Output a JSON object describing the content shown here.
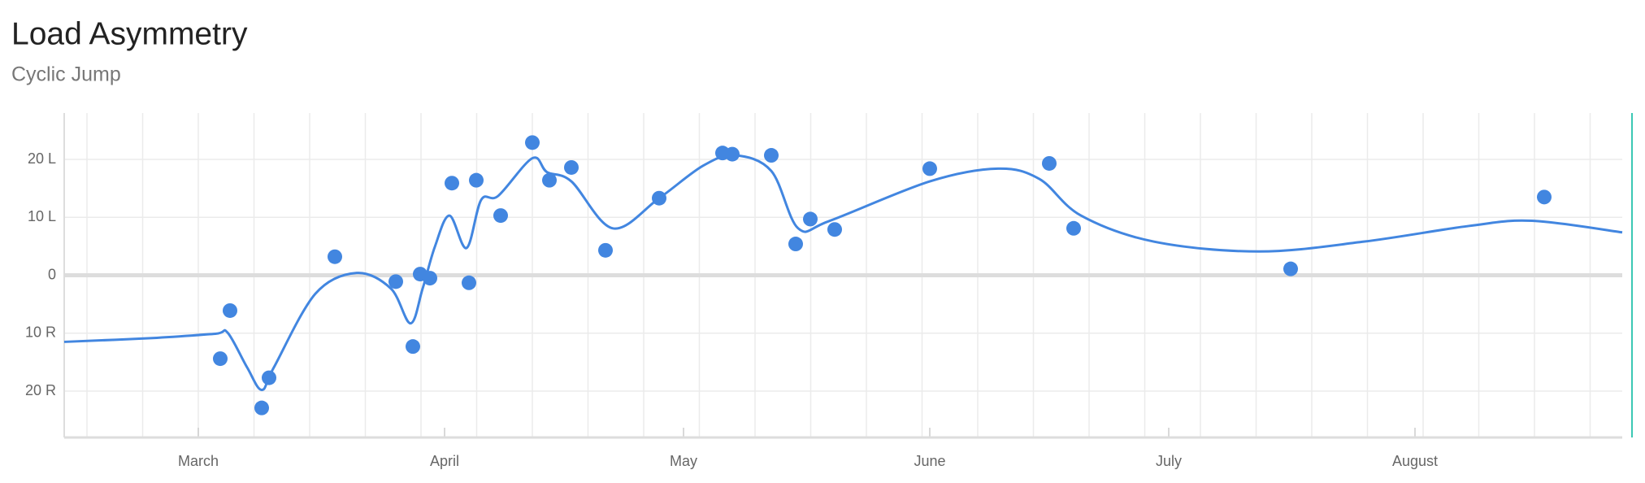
{
  "chart_data": {
    "type": "scatter",
    "title": "Load Asymmetry",
    "subtitle": "Cyclic Jump",
    "color": "#4286e0",
    "grid": true,
    "xlim": [
      2.45,
      8.84
    ],
    "xticks": [
      {
        "value": 3,
        "label": "March"
      },
      {
        "value": 4.01,
        "label": "April"
      },
      {
        "value": 4.99,
        "label": "May"
      },
      {
        "value": 6.0,
        "label": "June"
      },
      {
        "value": 6.98,
        "label": "July"
      },
      {
        "value": 7.99,
        "label": "August"
      }
    ],
    "ylim": [
      -28,
      28
    ],
    "yticks": [
      {
        "value": 20,
        "label": "20 L"
      },
      {
        "value": 10,
        "label": "10 L"
      },
      0,
      {
        "value": -10,
        "label": "10 R"
      },
      {
        "value": -20,
        "label": "20 R"
      }
    ],
    "points": {
      "x": [
        3.09,
        3.13,
        3.26,
        3.29,
        3.56,
        3.81,
        3.88,
        3.91,
        3.95,
        4.04,
        4.11,
        4.14,
        4.24,
        4.37,
        4.44,
        4.53,
        4.67,
        4.89,
        5.15,
        5.19,
        5.35,
        5.45,
        5.51,
        5.61,
        6.0,
        6.49,
        6.59,
        7.48,
        8.52
      ],
      "values": [
        -14.4,
        -6.1,
        -22.9,
        -17.7,
        3.2,
        -1.1,
        -12.3,
        0.2,
        -0.5,
        15.9,
        -1.3,
        16.4,
        10.3,
        22.9,
        16.4,
        18.6,
        4.3,
        13.3,
        21.1,
        20.9,
        20.7,
        5.4,
        9.7,
        7.9,
        18.4,
        19.3,
        8.1,
        1.1,
        13.5
      ]
    },
    "trend": {
      "x": [
        2.45,
        2.83,
        3.07,
        3.12,
        3.2,
        3.26,
        3.31,
        3.48,
        3.65,
        3.79,
        3.87,
        3.92,
        3.97,
        4.03,
        4.1,
        4.16,
        4.23,
        4.37,
        4.43,
        4.53,
        4.7,
        4.89,
        5.07,
        5.2,
        5.35,
        5.46,
        5.59,
        6.0,
        6.28,
        6.45,
        6.62,
        6.92,
        7.35,
        7.78,
        8.21,
        8.47,
        8.84
      ],
      "values": [
        -11.5,
        -10.8,
        -10.1,
        -9.9,
        -15.9,
        -19.8,
        -15.9,
        -3.2,
        0.4,
        -2.3,
        -8.3,
        -2.3,
        4.9,
        10.3,
        4.7,
        13.0,
        13.7,
        20.2,
        17.8,
        16.2,
        8.1,
        13.3,
        18.9,
        20.7,
        18.0,
        8.1,
        9.4,
        16.2,
        18.4,
        16.6,
        10.3,
        5.8,
        4.1,
        5.8,
        8.5,
        9.4,
        7.4
      ]
    }
  }
}
